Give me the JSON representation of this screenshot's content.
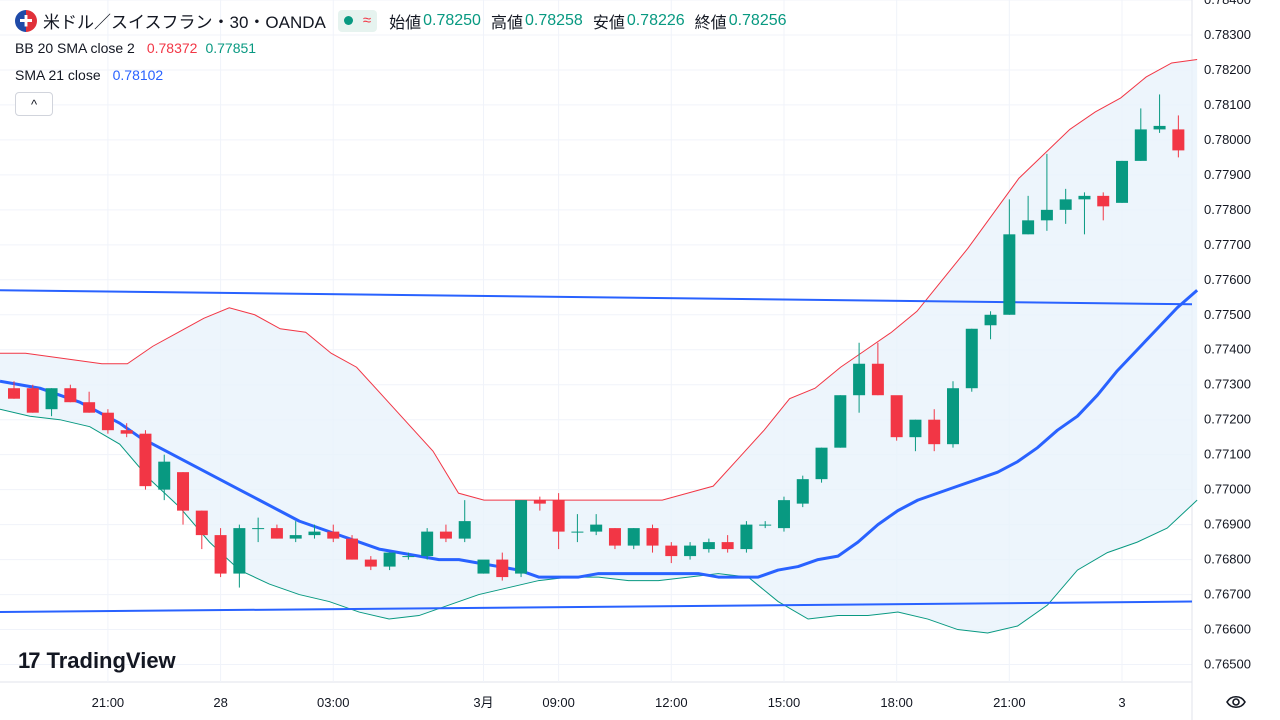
{
  "header": {
    "symbol": "米ドル／スイスフラン・30・OANDA",
    "status_wave": "≈",
    "ohlc": [
      {
        "label": "始値",
        "value": "0.78250"
      },
      {
        "label": "高値",
        "value": "0.78258"
      },
      {
        "label": "安値",
        "value": "0.78226"
      },
      {
        "label": "終値",
        "value": "0.78256"
      }
    ]
  },
  "indicators": {
    "bb": {
      "name": "BB 20 SMA close 2",
      "upper": "0.78372",
      "lower": "0.77851"
    },
    "sma": {
      "name": "SMA 21 close",
      "value": "0.78102"
    }
  },
  "collapse_label": "^",
  "logo": {
    "mark": "17",
    "text": "TradingView"
  },
  "colors": {
    "up": "#089981",
    "down": "#f23645",
    "sma": "#2962ff",
    "bb_upper": "#f23645",
    "bb_lower": "#089981",
    "bb_fill": "#e8f2fb",
    "trendline": "#2962ff",
    "grid": "#f0f3fa"
  },
  "chart_data": {
    "type": "candlestick",
    "ylim": [
      0.7645,
      0.784
    ],
    "y_ticks": [
      "0.78400",
      "0.78300",
      "0.78200",
      "0.78100",
      "0.78000",
      "0.77900",
      "0.77800",
      "0.77700",
      "0.77600",
      "0.77500",
      "0.77400",
      "0.77300",
      "0.77200",
      "0.77100",
      "0.77000",
      "0.76900",
      "0.76800",
      "0.76700",
      "0.76600",
      "0.76500"
    ],
    "x_ticks": [
      {
        "label": "21:00",
        "bar": 5
      },
      {
        "label": "28",
        "bar": 11
      },
      {
        "label": "03:00",
        "bar": 17
      },
      {
        "label": "3月",
        "bar": 25
      },
      {
        "label": "09:00",
        "bar": 29
      },
      {
        "label": "12:00",
        "bar": 35
      },
      {
        "label": "15:00",
        "bar": 41
      },
      {
        "label": "18:00",
        "bar": 47
      },
      {
        "label": "21:00",
        "bar": 53
      },
      {
        "label": "3",
        "bar": 59
      }
    ],
    "candles": [
      [
        0.7729,
        0.7731,
        0.7726,
        0.7726
      ],
      [
        0.7729,
        0.773,
        0.7722,
        0.7722
      ],
      [
        0.7723,
        0.7729,
        0.7721,
        0.7729
      ],
      [
        0.7729,
        0.773,
        0.7725,
        0.7725
      ],
      [
        0.7725,
        0.7728,
        0.7722,
        0.7722
      ],
      [
        0.7722,
        0.7723,
        0.7716,
        0.7717
      ],
      [
        0.7717,
        0.7719,
        0.7715,
        0.7716
      ],
      [
        0.7716,
        0.7717,
        0.77,
        0.7701
      ],
      [
        0.77,
        0.771,
        0.7697,
        0.7708
      ],
      [
        0.7705,
        0.7705,
        0.769,
        0.7694
      ],
      [
        0.7694,
        0.7694,
        0.7683,
        0.7687
      ],
      [
        0.7687,
        0.7689,
        0.7675,
        0.7676
      ],
      [
        0.7676,
        0.769,
        0.7672,
        0.7689
      ],
      [
        0.7689,
        0.7692,
        0.7685,
        0.7689
      ],
      [
        0.7689,
        0.769,
        0.7686,
        0.7686
      ],
      [
        0.7686,
        0.7691,
        0.7685,
        0.7687
      ],
      [
        0.7687,
        0.769,
        0.7686,
        0.7688
      ],
      [
        0.7688,
        0.769,
        0.7685,
        0.7686
      ],
      [
        0.7686,
        0.7687,
        0.768,
        0.768
      ],
      [
        0.768,
        0.7681,
        0.7677,
        0.7678
      ],
      [
        0.7678,
        0.7682,
        0.7677,
        0.7682
      ],
      [
        0.7681,
        0.7682,
        0.768,
        0.7681
      ],
      [
        0.7681,
        0.7689,
        0.768,
        0.7688
      ],
      [
        0.7688,
        0.769,
        0.7685,
        0.7686
      ],
      [
        0.7686,
        0.7697,
        0.7685,
        0.7691
      ],
      [
        0.7676,
        0.7679,
        0.7676,
        0.768
      ],
      [
        0.768,
        0.7682,
        0.7674,
        0.7675
      ],
      [
        0.7676,
        0.7697,
        0.7675,
        0.7697
      ],
      [
        0.7697,
        0.7698,
        0.7694,
        0.7696
      ],
      [
        0.7697,
        0.7699,
        0.7683,
        0.7688
      ],
      [
        0.7688,
        0.7693,
        0.7685,
        0.7688
      ],
      [
        0.7688,
        0.7693,
        0.7687,
        0.769
      ],
      [
        0.7689,
        0.7689,
        0.7683,
        0.7684
      ],
      [
        0.7684,
        0.7689,
        0.7683,
        0.7689
      ],
      [
        0.7689,
        0.769,
        0.7682,
        0.7684
      ],
      [
        0.7684,
        0.7685,
        0.7679,
        0.7681
      ],
      [
        0.7681,
        0.7685,
        0.768,
        0.7684
      ],
      [
        0.7683,
        0.7686,
        0.7682,
        0.7685
      ],
      [
        0.7685,
        0.7687,
        0.7682,
        0.7683
      ],
      [
        0.7683,
        0.7691,
        0.7682,
        0.769
      ],
      [
        0.769,
        0.7691,
        0.7689,
        0.769
      ],
      [
        0.7689,
        0.7698,
        0.7688,
        0.7697
      ],
      [
        0.7696,
        0.7704,
        0.7695,
        0.7703
      ],
      [
        0.7703,
        0.7712,
        0.7702,
        0.7712
      ],
      [
        0.7712,
        0.7727,
        0.7712,
        0.7727
      ],
      [
        0.7727,
        0.7742,
        0.7722,
        0.7736
      ],
      [
        0.7736,
        0.7742,
        0.7727,
        0.7727
      ],
      [
        0.7727,
        0.7726,
        0.7714,
        0.7715
      ],
      [
        0.7715,
        0.772,
        0.7711,
        0.772
      ],
      [
        0.772,
        0.7723,
        0.7711,
        0.7713
      ],
      [
        0.7713,
        0.7731,
        0.7712,
        0.7729
      ],
      [
        0.7729,
        0.7746,
        0.7728,
        0.7746
      ],
      [
        0.7747,
        0.7751,
        0.7743,
        0.775
      ],
      [
        0.775,
        0.7783,
        0.775,
        0.7773
      ],
      [
        0.7773,
        0.7784,
        0.7773,
        0.7777
      ],
      [
        0.7777,
        0.7796,
        0.7774,
        0.778
      ],
      [
        0.778,
        0.7786,
        0.7776,
        0.7783
      ],
      [
        0.7783,
        0.7785,
        0.7773,
        0.7784
      ],
      [
        0.7784,
        0.7785,
        0.7777,
        0.7781
      ],
      [
        0.7782,
        0.7794,
        0.7782,
        0.7794
      ],
      [
        0.7794,
        0.7809,
        0.7794,
        0.7803
      ],
      [
        0.7803,
        0.7813,
        0.7802,
        0.7804
      ],
      [
        0.7803,
        0.7807,
        0.7795,
        0.7797
      ]
    ],
    "sma21": [
      0.7731,
      0.773,
      0.7729,
      0.7727,
      0.7725,
      0.7722,
      0.7719,
      0.7715,
      0.7712,
      0.7709,
      0.7706,
      0.7703,
      0.77,
      0.7697,
      0.7694,
      0.7691,
      0.7689,
      0.7687,
      0.7685,
      0.7683,
      0.7682,
      0.7681,
      0.768,
      0.768,
      0.7679,
      0.7678,
      0.7677,
      0.7675,
      0.7675,
      0.7675,
      0.7676,
      0.7676,
      0.7676,
      0.7676,
      0.7676,
      0.7676,
      0.7675,
      0.7675,
      0.7675,
      0.7677,
      0.7678,
      0.768,
      0.7681,
      0.7685,
      0.769,
      0.7694,
      0.7697,
      0.7699,
      0.7701,
      0.7703,
      0.7705,
      0.7708,
      0.7712,
      0.7717,
      0.7721,
      0.7727,
      0.7734,
      0.774,
      0.7746,
      0.7752,
      0.7757
    ],
    "bb_upper": [
      0.7739,
      0.7739,
      0.7738,
      0.7737,
      0.7736,
      0.7736,
      0.7741,
      0.7745,
      0.7749,
      0.7752,
      0.775,
      0.7746,
      0.7745,
      0.7739,
      0.7735,
      0.7727,
      0.7719,
      0.7711,
      0.7699,
      0.7697,
      0.7697,
      0.7697,
      0.7697,
      0.7697,
      0.7697,
      0.7697,
      0.7697,
      0.7699,
      0.7701,
      0.7709,
      0.7717,
      0.7726,
      0.7729,
      0.7735,
      0.774,
      0.7745,
      0.7751,
      0.776,
      0.7769,
      0.7779,
      0.7789,
      0.7796,
      0.7803,
      0.7808,
      0.7812,
      0.7818,
      0.7822,
      0.7823
    ],
    "bb_lower": [
      0.7723,
      0.7721,
      0.772,
      0.7718,
      0.7713,
      0.7703,
      0.7695,
      0.7685,
      0.7677,
      0.7673,
      0.767,
      0.7668,
      0.7665,
      0.7663,
      0.7664,
      0.7667,
      0.767,
      0.7672,
      0.7674,
      0.7675,
      0.7675,
      0.7674,
      0.7674,
      0.7675,
      0.7676,
      0.7675,
      0.7668,
      0.7663,
      0.7664,
      0.7664,
      0.7665,
      0.7663,
      0.766,
      0.7659,
      0.7661,
      0.7667,
      0.7677,
      0.7682,
      0.7685,
      0.7689,
      0.7697
    ],
    "trendlines": [
      {
        "from": [
          0,
          0.7757
        ],
        "to": [
          66,
          0.7753
        ]
      },
      {
        "from": [
          0,
          0.7665
        ],
        "to": [
          66,
          0.7668
        ]
      }
    ]
  }
}
